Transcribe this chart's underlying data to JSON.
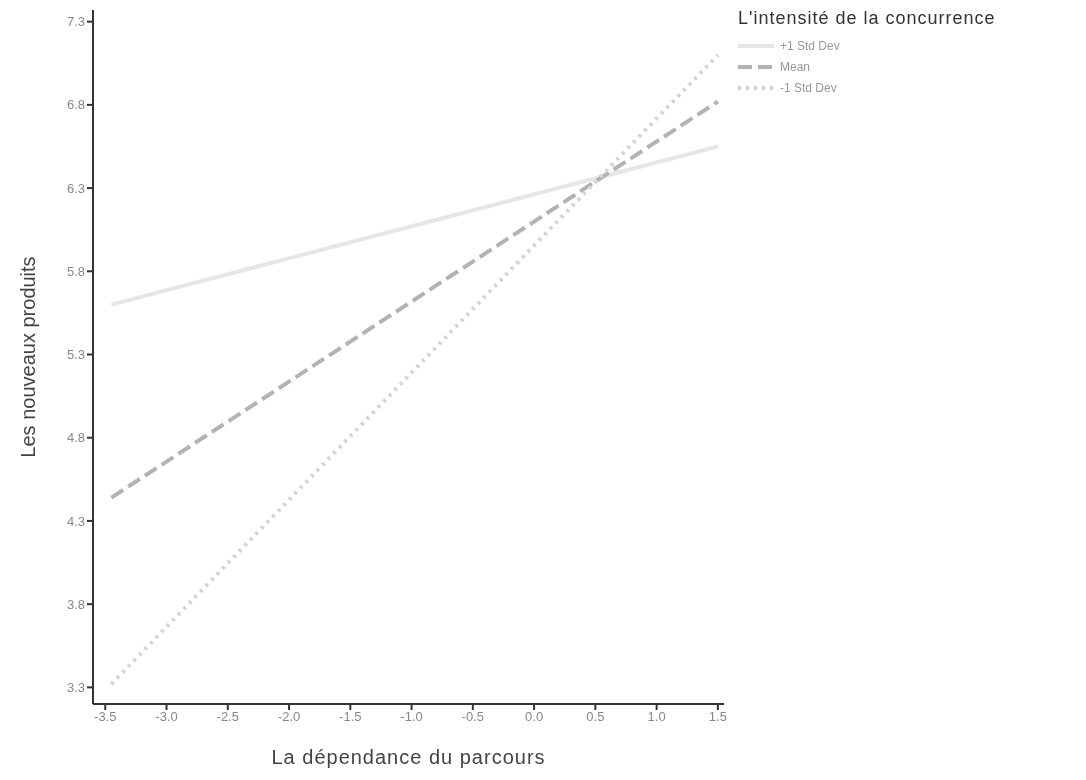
{
  "chart_data": {
    "type": "line",
    "xlabel": "La dépendance du parcours",
    "ylabel": "Les nouveaux produits",
    "legend_title": "L'intensité de la concurrence",
    "x": [
      -3.45,
      1.5
    ],
    "series": [
      {
        "name": "+1 Std Dev",
        "color": "#e6e6e6",
        "values": [
          5.6,
          6.55
        ],
        "line_style": "solid"
      },
      {
        "name": "Mean",
        "color": "#b3b3b3",
        "values": [
          4.44,
          6.82
        ],
        "line_style": "dashed"
      },
      {
        "name": "-1 Std Dev",
        "color": "#d4d4d4",
        "values": [
          3.32,
          7.1
        ],
        "line_style": "dotted"
      }
    ],
    "xlim": [
      -3.6,
      1.55
    ],
    "xticks": [
      {
        "value": -3.5,
        "label": "-3.5"
      },
      {
        "value": -3,
        "label": "-3.0"
      },
      {
        "value": -2.5,
        "label": "-2.5"
      },
      {
        "value": -2,
        "label": "-2.0"
      },
      {
        "value": -1.5,
        "label": "-1.5"
      },
      {
        "value": -1,
        "label": "-1.0"
      },
      {
        "value": -0.5,
        "label": "-0.5"
      },
      {
        "value": 0,
        "label": "0.0"
      },
      {
        "value": 0.5,
        "label": "0.5"
      },
      {
        "value": 1,
        "label": "1.0"
      },
      {
        "value": 1.5,
        "label": "1.5"
      }
    ],
    "ylim": [
      3.2,
      7.37
    ],
    "yticks": [
      3.3,
      3.8,
      4.3,
      4.8,
      5.3,
      5.8,
      6.3,
      6.8,
      7.3
    ],
    "grid": false,
    "legend": "top right",
    "marker": "none"
  }
}
